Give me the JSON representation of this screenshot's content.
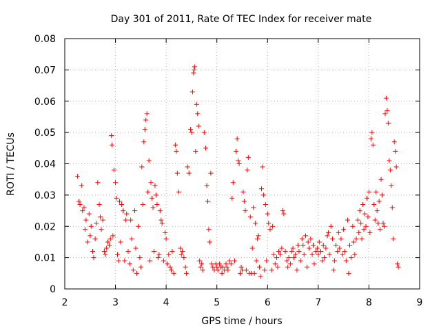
{
  "chart_data": {
    "type": "scatter",
    "title": "Day 301 of 2011, Rate Of TEC Index for receiver mate",
    "xlabel": "GPS time / hours",
    "ylabel": "ROTI / TECUs",
    "xlim": [
      2,
      9
    ],
    "ylim": [
      0,
      0.08
    ],
    "x_ticks": [
      2,
      3,
      4,
      5,
      6,
      7,
      8,
      9
    ],
    "y_ticks": [
      0,
      0.01,
      0.02,
      0.03,
      0.04,
      0.05,
      0.06,
      0.07,
      0.08
    ],
    "x_tick_labels": [
      "2",
      "3",
      "4",
      "5",
      "6",
      "7",
      "8",
      "9"
    ],
    "y_tick_labels": [
      "0",
      "0.01",
      "0.02",
      "0.03",
      "0.04",
      "0.05",
      "0.06",
      "0.07",
      "0.08"
    ],
    "grid": true,
    "marker": "+",
    "color": "#ff0000",
    "points": [
      [
        2.25,
        0.036
      ],
      [
        2.28,
        0.028
      ],
      [
        2.3,
        0.027
      ],
      [
        2.33,
        0.033
      ],
      [
        2.35,
        0.025
      ],
      [
        2.38,
        0.026
      ],
      [
        2.4,
        0.019
      ],
      [
        2.42,
        0.022
      ],
      [
        2.45,
        0.015
      ],
      [
        2.48,
        0.024
      ],
      [
        2.5,
        0.017
      ],
      [
        2.52,
        0.02
      ],
      [
        2.55,
        0.012
      ],
      [
        2.57,
        0.01
      ],
      [
        2.6,
        0.016
      ],
      [
        2.62,
        0.021
      ],
      [
        2.65,
        0.034
      ],
      [
        2.68,
        0.027
      ],
      [
        2.7,
        0.023
      ],
      [
        2.72,
        0.019
      ],
      [
        2.75,
        0.022
      ],
      [
        2.78,
        0.012
      ],
      [
        2.8,
        0.011
      ],
      [
        2.82,
        0.013
      ],
      [
        2.85,
        0.015
      ],
      [
        2.88,
        0.014
      ],
      [
        2.9,
        0.016
      ],
      [
        2.92,
        0.049
      ],
      [
        2.93,
        0.046
      ],
      [
        2.95,
        0.017
      ],
      [
        2.97,
        0.038
      ],
      [
        3.0,
        0.034
      ],
      [
        3.02,
        0.029
      ],
      [
        3.04,
        0.011
      ],
      [
        3.06,
        0.009
      ],
      [
        3.08,
        0.028
      ],
      [
        3.1,
        0.015
      ],
      [
        3.12,
        0.027
      ],
      [
        3.15,
        0.025
      ],
      [
        3.18,
        0.009
      ],
      [
        3.2,
        0.022
      ],
      [
        3.22,
        0.024
      ],
      [
        3.25,
        0.012
      ],
      [
        3.28,
        0.008
      ],
      [
        3.3,
        0.022
      ],
      [
        3.32,
        0.016
      ],
      [
        3.35,
        0.006
      ],
      [
        3.38,
        0.025
      ],
      [
        3.4,
        0.013
      ],
      [
        3.42,
        0.005
      ],
      [
        3.45,
        0.02
      ],
      [
        3.48,
        0.01
      ],
      [
        3.5,
        0.007
      ],
      [
        3.52,
        0.039
      ],
      [
        3.54,
        0.027
      ],
      [
        3.56,
        0.047
      ],
      [
        3.58,
        0.051
      ],
      [
        3.6,
        0.054
      ],
      [
        3.62,
        0.056
      ],
      [
        3.64,
        0.031
      ],
      [
        3.66,
        0.041
      ],
      [
        3.68,
        0.009
      ],
      [
        3.7,
        0.034
      ],
      [
        3.72,
        0.029
      ],
      [
        3.74,
        0.026
      ],
      [
        3.76,
        0.012
      ],
      [
        3.78,
        0.033
      ],
      [
        3.8,
        0.03
      ],
      [
        3.82,
        0.027
      ],
      [
        3.84,
        0.01
      ],
      [
        3.86,
        0.011
      ],
      [
        3.88,
        0.025
      ],
      [
        3.9,
        0.022
      ],
      [
        3.92,
        0.021
      ],
      [
        3.95,
        0.009
      ],
      [
        3.98,
        0.018
      ],
      [
        4.0,
        0.016
      ],
      [
        4.02,
        0.008
      ],
      [
        4.05,
        0.011
      ],
      [
        4.08,
        0.007
      ],
      [
        4.1,
        0.006
      ],
      [
        4.12,
        0.012
      ],
      [
        4.15,
        0.005
      ],
      [
        4.18,
        0.046
      ],
      [
        4.2,
        0.044
      ],
      [
        4.22,
        0.037
      ],
      [
        4.25,
        0.031
      ],
      [
        4.28,
        0.013
      ],
      [
        4.3,
        0.011
      ],
      [
        4.32,
        0.012
      ],
      [
        4.35,
        0.01
      ],
      [
        4.38,
        0.007
      ],
      [
        4.4,
        0.005
      ],
      [
        4.42,
        0.039
      ],
      [
        4.45,
        0.037
      ],
      [
        4.48,
        0.051
      ],
      [
        4.5,
        0.05
      ],
      [
        4.52,
        0.063
      ],
      [
        4.54,
        0.069
      ],
      [
        4.55,
        0.07
      ],
      [
        4.56,
        0.071
      ],
      [
        4.58,
        0.044
      ],
      [
        4.6,
        0.059
      ],
      [
        4.62,
        0.056
      ],
      [
        4.64,
        0.052
      ],
      [
        4.66,
        0.009
      ],
      [
        4.68,
        0.007
      ],
      [
        4.7,
        0.008
      ],
      [
        4.72,
        0.006
      ],
      [
        4.75,
        0.05
      ],
      [
        4.78,
        0.045
      ],
      [
        4.8,
        0.033
      ],
      [
        4.82,
        0.028
      ],
      [
        4.84,
        0.019
      ],
      [
        4.86,
        0.015
      ],
      [
        4.88,
        0.037
      ],
      [
        4.9,
        0.008
      ],
      [
        4.92,
        0.007
      ],
      [
        4.95,
        0.006
      ],
      [
        4.98,
        0.008
      ],
      [
        5.0,
        0.007
      ],
      [
        5.02,
        0.006
      ],
      [
        5.05,
        0.008
      ],
      [
        5.08,
        0.007
      ],
      [
        5.1,
        0.005
      ],
      [
        5.12,
        0.007
      ],
      [
        5.15,
        0.006
      ],
      [
        5.18,
        0.008
      ],
      [
        5.2,
        0.007
      ],
      [
        5.22,
        0.006
      ],
      [
        5.25,
        0.009
      ],
      [
        5.28,
        0.008
      ],
      [
        5.3,
        0.029
      ],
      [
        5.32,
        0.034
      ],
      [
        5.35,
        0.009
      ],
      [
        5.38,
        0.044
      ],
      [
        5.4,
        0.048
      ],
      [
        5.42,
        0.041
      ],
      [
        5.44,
        0.04
      ],
      [
        5.46,
        0.005
      ],
      [
        5.48,
        0.007
      ],
      [
        5.5,
        0.006
      ],
      [
        5.52,
        0.031
      ],
      [
        5.54,
        0.028
      ],
      [
        5.56,
        0.025
      ],
      [
        5.58,
        0.006
      ],
      [
        5.6,
        0.038
      ],
      [
        5.62,
        0.042
      ],
      [
        5.64,
        0.005
      ],
      [
        5.66,
        0.023
      ],
      [
        5.68,
        0.005
      ],
      [
        5.7,
        0.013
      ],
      [
        5.72,
        0.026
      ],
      [
        5.74,
        0.005
      ],
      [
        5.76,
        0.021
      ],
      [
        5.78,
        0.009
      ],
      [
        5.8,
        0.016
      ],
      [
        5.82,
        0.017
      ],
      [
        5.84,
        0.007
      ],
      [
        5.86,
        0.004
      ],
      [
        5.88,
        0.032
      ],
      [
        5.9,
        0.039
      ],
      [
        5.92,
        0.03
      ],
      [
        5.94,
        0.006
      ],
      [
        5.96,
        0.027
      ],
      [
        5.98,
        0.009
      ],
      [
        6.0,
        0.024
      ],
      [
        6.02,
        0.021
      ],
      [
        6.05,
        0.019
      ],
      [
        6.08,
        0.006
      ],
      [
        6.1,
        0.02
      ],
      [
        6.12,
        0.011
      ],
      [
        6.15,
        0.008
      ],
      [
        6.18,
        0.01
      ],
      [
        6.2,
        0.007
      ],
      [
        6.22,
        0.012
      ],
      [
        6.25,
        0.011
      ],
      [
        6.28,
        0.013
      ],
      [
        6.3,
        0.025
      ],
      [
        6.32,
        0.024
      ],
      [
        6.35,
        0.012
      ],
      [
        6.38,
        0.009
      ],
      [
        6.4,
        0.007
      ],
      [
        6.42,
        0.01
      ],
      [
        6.45,
        0.008
      ],
      [
        6.48,
        0.012
      ],
      [
        6.5,
        0.013
      ],
      [
        6.52,
        0.01
      ],
      [
        6.55,
        0.011
      ],
      [
        6.58,
        0.006
      ],
      [
        6.6,
        0.014
      ],
      [
        6.62,
        0.012
      ],
      [
        6.65,
        0.009
      ],
      [
        6.68,
        0.016
      ],
      [
        6.7,
        0.014
      ],
      [
        6.72,
        0.011
      ],
      [
        6.75,
        0.017
      ],
      [
        6.78,
        0.007
      ],
      [
        6.8,
        0.015
      ],
      [
        6.82,
        0.013
      ],
      [
        6.85,
        0.016
      ],
      [
        6.88,
        0.011
      ],
      [
        6.9,
        0.014
      ],
      [
        6.92,
        0.008
      ],
      [
        6.95,
        0.012
      ],
      [
        6.98,
        0.013
      ],
      [
        7.0,
        0.011
      ],
      [
        7.02,
        0.015
      ],
      [
        7.05,
        0.012
      ],
      [
        7.08,
        0.009
      ],
      [
        7.1,
        0.014
      ],
      [
        7.12,
        0.01
      ],
      [
        7.15,
        0.013
      ],
      [
        7.18,
        0.017
      ],
      [
        7.2,
        0.018
      ],
      [
        7.22,
        0.011
      ],
      [
        7.25,
        0.02
      ],
      [
        7.28,
        0.016
      ],
      [
        7.3,
        0.006
      ],
      [
        7.32,
        0.009
      ],
      [
        7.35,
        0.014
      ],
      [
        7.38,
        0.012
      ],
      [
        7.4,
        0.018
      ],
      [
        7.42,
        0.013
      ],
      [
        7.45,
        0.016
      ],
      [
        7.48,
        0.011
      ],
      [
        7.5,
        0.019
      ],
      [
        7.52,
        0.012
      ],
      [
        7.55,
        0.009
      ],
      [
        7.58,
        0.022
      ],
      [
        7.6,
        0.005
      ],
      [
        7.62,
        0.014
      ],
      [
        7.65,
        0.01
      ],
      [
        7.68,
        0.02
      ],
      [
        7.7,
        0.015
      ],
      [
        7.72,
        0.011
      ],
      [
        7.75,
        0.016
      ],
      [
        7.78,
        0.022
      ],
      [
        7.8,
        0.018
      ],
      [
        7.82,
        0.025
      ],
      [
        7.84,
        0.021
      ],
      [
        7.86,
        0.016
      ],
      [
        7.88,
        0.027
      ],
      [
        7.9,
        0.019
      ],
      [
        7.92,
        0.024
      ],
      [
        7.94,
        0.02
      ],
      [
        7.96,
        0.029
      ],
      [
        7.98,
        0.023
      ],
      [
        8.0,
        0.031
      ],
      [
        8.02,
        0.018
      ],
      [
        8.04,
        0.048
      ],
      [
        8.06,
        0.05
      ],
      [
        8.08,
        0.046
      ],
      [
        8.1,
        0.027
      ],
      [
        8.12,
        0.022
      ],
      [
        8.14,
        0.031
      ],
      [
        8.16,
        0.025
      ],
      [
        8.18,
        0.021
      ],
      [
        8.2,
        0.028
      ],
      [
        8.22,
        0.019
      ],
      [
        8.24,
        0.035
      ],
      [
        8.26,
        0.03
      ],
      [
        8.28,
        0.021
      ],
      [
        8.3,
        0.02
      ],
      [
        8.32,
        0.056
      ],
      [
        8.34,
        0.061
      ],
      [
        8.36,
        0.057
      ],
      [
        8.38,
        0.053
      ],
      [
        8.4,
        0.041
      ],
      [
        8.42,
        0.038
      ],
      [
        8.44,
        0.033
      ],
      [
        8.46,
        0.026
      ],
      [
        8.48,
        0.016
      ],
      [
        8.5,
        0.047
      ],
      [
        8.52,
        0.044
      ],
      [
        8.54,
        0.039
      ],
      [
        8.56,
        0.008
      ],
      [
        8.58,
        0.007
      ]
    ]
  }
}
